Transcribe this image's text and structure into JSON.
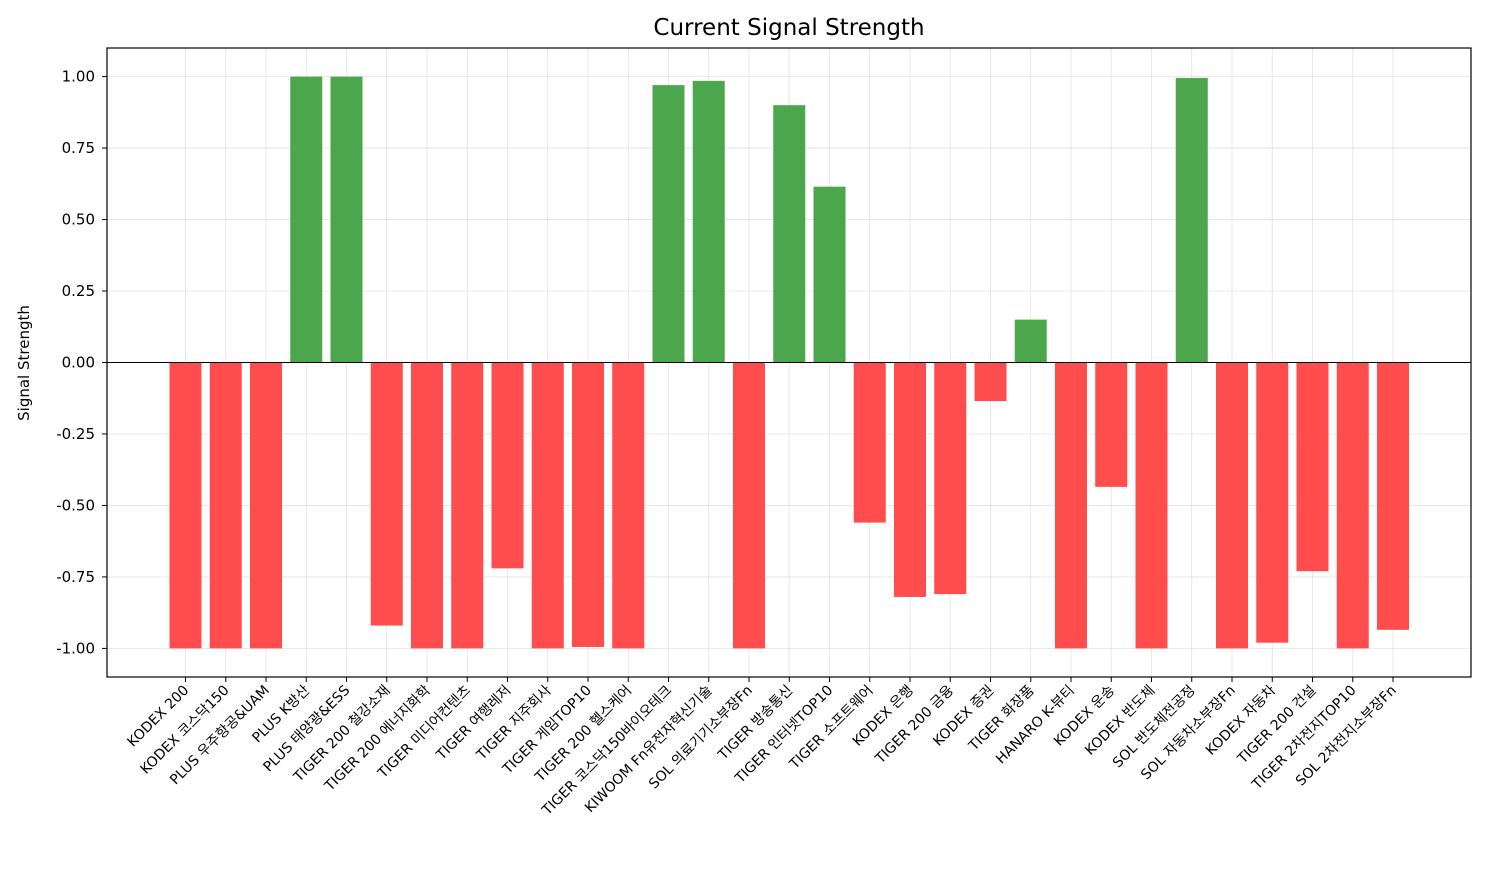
{
  "chart_data": {
    "type": "bar",
    "title": "Current Signal Strength",
    "xlabel": "",
    "ylabel": "Signal Strength",
    "ylim": [
      -1.1,
      1.1
    ],
    "yticks": [
      1.0,
      0.75,
      0.5,
      0.25,
      0.0,
      -0.25,
      -0.5,
      -0.75,
      -1.0
    ],
    "ytick_labels": [
      "1.00",
      "0.75",
      "0.50",
      "0.25",
      "0.00",
      "-0.25",
      "-0.50",
      "-0.75",
      "-1.00"
    ],
    "grid": true,
    "positive_color": "#4ca64c",
    "negative_color": "#ff4c4c",
    "zero_line_color": "#000000",
    "categories": [
      "KODEX 200",
      "KODEX 코스닥150",
      "PLUS 우주항공&UAM",
      "PLUS K방산",
      "PLUS 태양광&ESS",
      "TIGER 200 철강소재",
      "TIGER 200 에너지화학",
      "TIGER 미디어컨텐츠",
      "TIGER 여행레저",
      "TIGER 지주회사",
      "TIGER 게임TOP10",
      "TIGER 200 헬스케어",
      "TIGER 코스닥150바이오테크",
      "KIWOOM Fn유전자혁신기술",
      "SOL 의료기기소부장Fn",
      "TIGER 방송통신",
      "TIGER 인터넷TOP10",
      "TIGER 소프트웨어",
      "KODEX 은행",
      "TIGER 200 금융",
      "KODEX 증권",
      "TIGER 화장품",
      "HANARO K-뷰티",
      "KODEX 운송",
      "KODEX 반도체",
      "SOL 반도체전공정",
      "SOL 자동차소부장Fn",
      "KODEX 자동차",
      "TIGER 200 건설",
      "TIGER 2차전지TOP10",
      "SOL 2차전지소부장Fn"
    ],
    "values": [
      -1.0,
      -1.0,
      -1.0,
      1.0,
      1.0,
      -0.92,
      -1.0,
      -1.0,
      -0.72,
      -1.0,
      -0.995,
      -1.0,
      0.97,
      0.985,
      -1.0,
      0.9,
      0.615,
      -0.56,
      -0.82,
      -0.81,
      -0.135,
      0.15,
      -1.0,
      -0.435,
      -1.0,
      0.995,
      -1.0,
      -0.98,
      -0.73,
      -1.0,
      -0.935
    ]
  }
}
